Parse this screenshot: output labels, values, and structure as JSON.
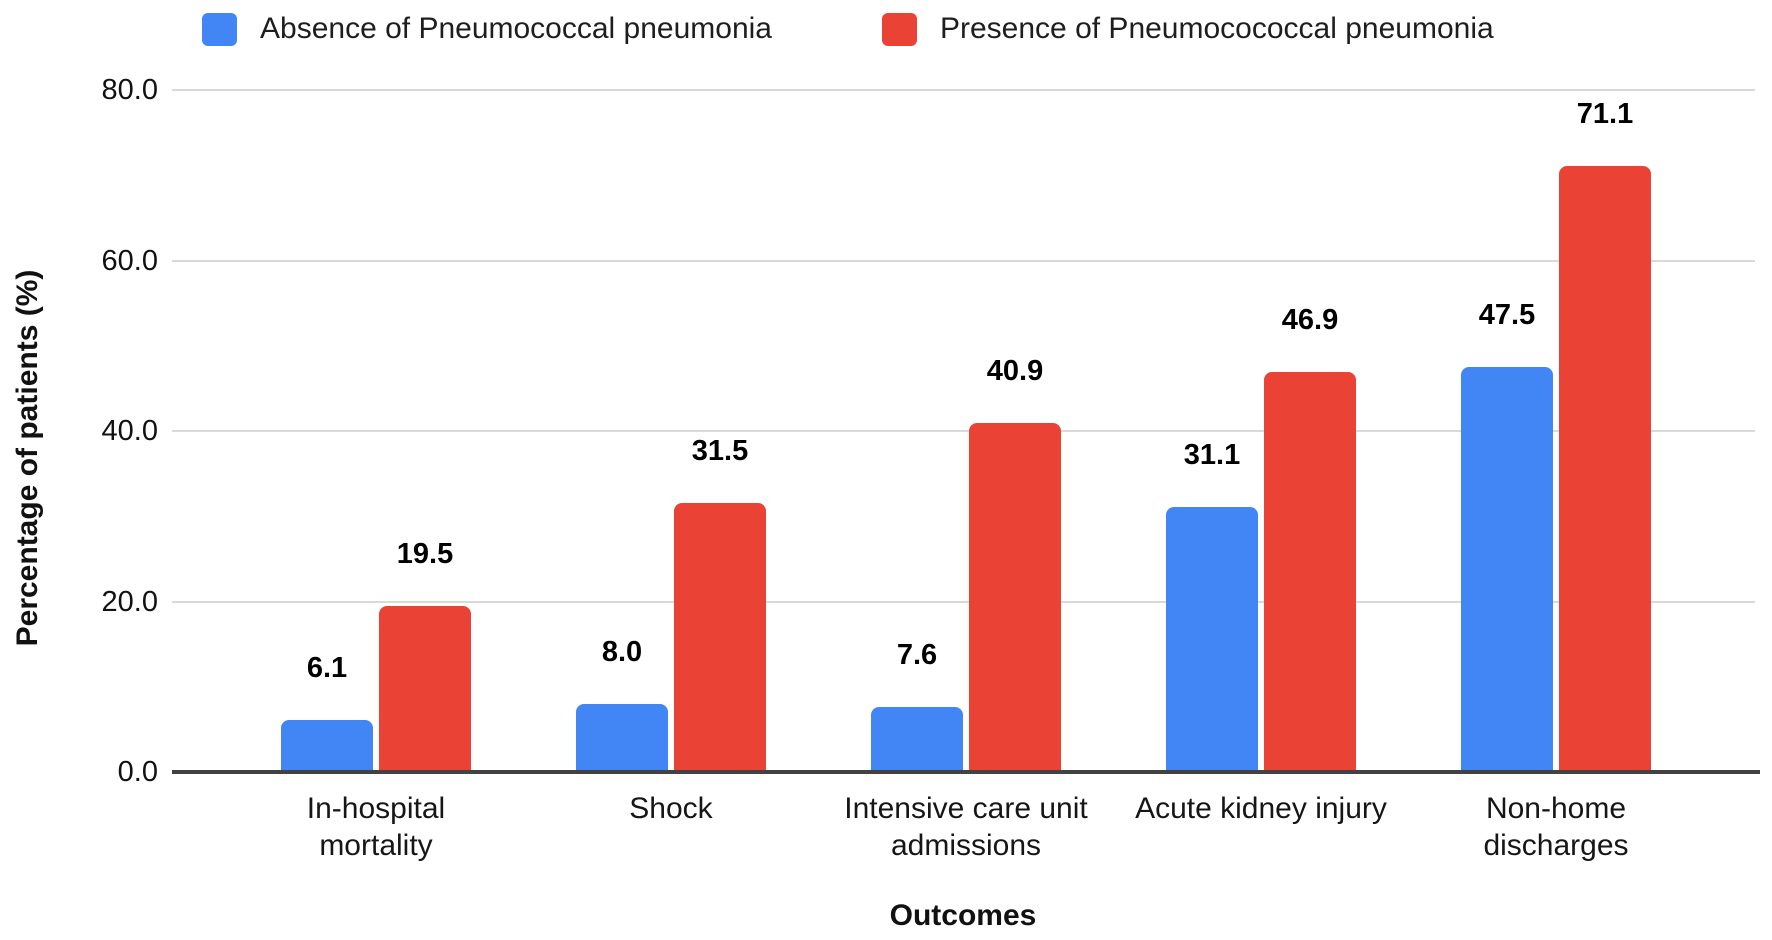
{
  "chart_data": {
    "type": "bar",
    "title": "",
    "categories": [
      "In-hospital mortality",
      "Shock",
      "Intensive care unit admissions",
      "Acute kidney injury",
      "Non-home discharges"
    ],
    "category_lines": [
      [
        "In-hospital",
        "mortality"
      ],
      [
        "Shock"
      ],
      [
        "Intensive care unit",
        "admissions"
      ],
      [
        "Acute kidney injury"
      ],
      [
        "Non-home",
        "discharges"
      ]
    ],
    "series": [
      {
        "name": "Absence of Pneumococcal pneumonia",
        "color": "#4285F4",
        "values": [
          6.1,
          8.0,
          7.6,
          31.1,
          47.5
        ],
        "labels": [
          "6.1",
          "8.0",
          "7.6",
          "31.1",
          "47.5"
        ]
      },
      {
        "name": "Presence of Pneumocococcal pneumonia",
        "color": "#EA4335",
        "values": [
          19.5,
          31.5,
          40.9,
          46.9,
          71.1
        ],
        "labels": [
          "19.5",
          "31.5",
          "40.9",
          "46.9",
          "71.1"
        ]
      }
    ],
    "xlabel": "Outcomes",
    "ylabel": "Percentage of patients (%)",
    "ylim": [
      0,
      80
    ],
    "ytick_interval": 20,
    "ytick_labels": [
      "0.0",
      "20.0",
      "40.0",
      "60.0",
      "80.0"
    ],
    "grid": "horizontal",
    "legend_position": "top"
  },
  "style": {
    "background": "#ffffff",
    "gridline_color": "#d9d9d9",
    "axis_line_color": "#424242",
    "tick_text_color": "#111111",
    "legend_text_color": "#1e1e1e",
    "value_label_color": "#000000"
  }
}
